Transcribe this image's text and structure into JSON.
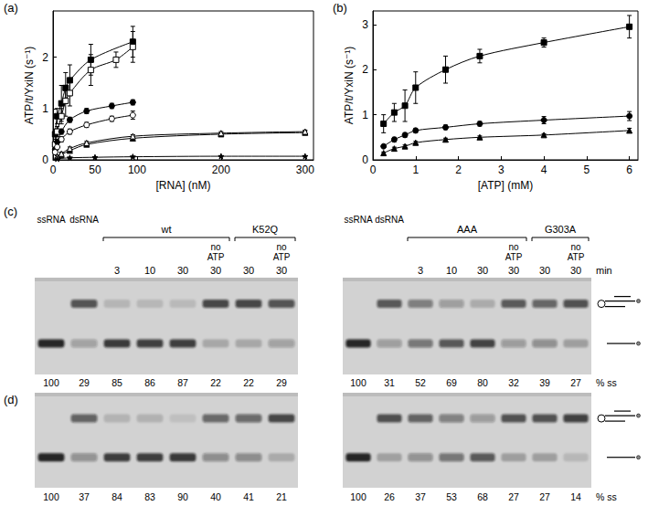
{
  "chart_data": [
    {
      "type": "line",
      "title": "(a)",
      "xlabel": "[RNA] (nM)",
      "ylabel": "ATP/t/YxiN (s⁻¹)",
      "xlim": [
        0,
        310
      ],
      "xticks": [
        0,
        50,
        100,
        200,
        300
      ],
      "ylim": [
        0,
        2.9
      ],
      "yticks": [
        0,
        1,
        2
      ],
      "series": [
        {
          "marker": "square",
          "color": "#000000",
          "line_style": "solid",
          "x": [
            2.5,
            5,
            10,
            15,
            20,
            45,
            95
          ],
          "values": [
            0.5,
            0.85,
            1.1,
            1.4,
            1.55,
            1.95,
            2.3
          ],
          "errors": [
            0.1,
            0.15,
            0.35,
            0.3,
            0.3,
            0.3,
            0.3
          ]
        },
        {
          "marker": "open_square",
          "color": "#000000",
          "line_style": "solid",
          "x": [
            2.5,
            5,
            10,
            15,
            20,
            45,
            75,
            95
          ],
          "values": [
            0.3,
            0.55,
            0.85,
            1.15,
            1.3,
            1.75,
            1.95,
            2.2
          ],
          "errors": [
            0.05,
            0.1,
            0.15,
            0.3,
            0.25,
            0.3,
            0.15,
            0.3
          ]
        },
        {
          "marker": "circle",
          "color": "#000000",
          "line_style": "solid",
          "x": [
            2.5,
            5,
            10,
            20,
            40,
            70,
            95
          ],
          "values": [
            0.2,
            0.35,
            0.55,
            0.78,
            0.95,
            1.05,
            1.12
          ],
          "errors": [
            0.03,
            0.05,
            0.05,
            0.05,
            0.05,
            0.05,
            0.05
          ]
        },
        {
          "marker": "open_circle",
          "color": "#000000",
          "line_style": "solid",
          "x": [
            2.5,
            5,
            10,
            20,
            40,
            70,
            95
          ],
          "values": [
            0.15,
            0.25,
            0.4,
            0.55,
            0.68,
            0.8,
            0.87
          ],
          "errors": [
            0.03,
            0.03,
            0.05,
            0.05,
            0.05,
            0.05,
            0.08
          ]
        },
        {
          "marker": "triangle",
          "color": "#000000",
          "line_style": "solid",
          "x": [
            5,
            10,
            20,
            40,
            95,
            200,
            300
          ],
          "values": [
            0.05,
            0.1,
            0.18,
            0.3,
            0.42,
            0.5,
            0.53
          ],
          "errors": [
            0.03,
            0.03,
            0.03,
            0.03,
            0.03,
            0.03,
            0.03
          ]
        },
        {
          "marker": "open_triangle",
          "color": "#000000",
          "line_style": "solid",
          "x": [
            5,
            10,
            20,
            40,
            95,
            200,
            300
          ],
          "values": [
            0.06,
            0.12,
            0.22,
            0.33,
            0.46,
            0.52,
            0.55
          ],
          "errors": [
            0.03,
            0.03,
            0.03,
            0.03,
            0.03,
            0.03,
            0.03
          ]
        },
        {
          "marker": "star",
          "color": "#000000",
          "line_style": "solid",
          "x": [
            5,
            20,
            50,
            95,
            200,
            300
          ],
          "values": [
            0.02,
            0.04,
            0.05,
            0.06,
            0.07,
            0.07
          ],
          "errors": [
            0.01,
            0.01,
            0.01,
            0.01,
            0.01,
            0.01
          ]
        }
      ]
    },
    {
      "type": "line",
      "title": "(b)",
      "xlabel": "[ATP] (mM)",
      "ylabel": "ATP/t/YxiN (s⁻¹)",
      "xlim": [
        0,
        6.2
      ],
      "xticks": [
        0,
        1,
        2,
        3,
        4,
        5,
        6
      ],
      "ylim": [
        0,
        3.3
      ],
      "yticks": [
        0,
        1,
        2,
        3
      ],
      "series": [
        {
          "marker": "square",
          "color": "#000000",
          "line_style": "solid",
          "x": [
            0.25,
            0.5,
            0.75,
            1,
            1.7,
            2.5,
            4,
            6
          ],
          "values": [
            0.8,
            1.05,
            1.2,
            1.6,
            2.0,
            2.3,
            2.6,
            2.95
          ],
          "errors": [
            0.2,
            0.2,
            0.35,
            0.35,
            0.3,
            0.15,
            0.1,
            0.25
          ]
        },
        {
          "marker": "circle",
          "color": "#000000",
          "line_style": "solid",
          "x": [
            0.25,
            0.5,
            0.75,
            1,
            1.7,
            2.5,
            4,
            6
          ],
          "values": [
            0.3,
            0.45,
            0.55,
            0.65,
            0.72,
            0.8,
            0.88,
            0.97
          ],
          "errors": [
            0.03,
            0.05,
            0.05,
            0.05,
            0.05,
            0.05,
            0.08,
            0.1
          ]
        },
        {
          "marker": "triangle",
          "color": "#000000",
          "line_style": "solid",
          "x": [
            0.25,
            0.5,
            0.75,
            1,
            1.7,
            2.5,
            4,
            6
          ],
          "values": [
            0.15,
            0.25,
            0.3,
            0.38,
            0.45,
            0.5,
            0.55,
            0.65
          ],
          "errors": [
            0.02,
            0.03,
            0.03,
            0.03,
            0.03,
            0.03,
            0.03,
            0.05
          ]
        }
      ]
    }
  ],
  "gel_figure": {
    "time_unit": "min",
    "no_atp": "no ATP",
    "percent_label": "% ss",
    "columns": [
      {
        "lanes": [
          {
            "label": "ssRNA"
          },
          {
            "label": "dsRNA"
          },
          {
            "group": "wt",
            "time": 3
          },
          {
            "group": "wt",
            "time": 10
          },
          {
            "group": "wt",
            "time": 30
          },
          {
            "group": "wt",
            "time": 30,
            "no_atp": true
          },
          {
            "group": "K52Q",
            "time": 30
          },
          {
            "group": "K52Q",
            "time": 30,
            "no_atp": true
          }
        ]
      },
      {
        "lanes": [
          {
            "label": "ssRNA"
          },
          {
            "label": "dsRNA"
          },
          {
            "group": "AAA",
            "time": 3
          },
          {
            "group": "AAA",
            "time": 10
          },
          {
            "group": "AAA",
            "time": 30
          },
          {
            "group": "AAA",
            "time": 30,
            "no_atp": true
          },
          {
            "group": "G303A",
            "time": 30
          },
          {
            "group": "G303A",
            "time": 30,
            "no_atp": true
          }
        ]
      }
    ],
    "rows": [
      {
        "letter": "(c)",
        "percent_ss": [
          [
            100,
            29,
            85,
            86,
            87,
            22,
            22,
            29
          ],
          [
            100,
            31,
            52,
            69,
            80,
            32,
            39,
            27
          ]
        ]
      },
      {
        "letter": "(d)",
        "percent_ss": [
          [
            100,
            37,
            84,
            83,
            90,
            40,
            41,
            21
          ],
          [
            100,
            26,
            37,
            53,
            68,
            27,
            27,
            14
          ]
        ]
      }
    ]
  }
}
